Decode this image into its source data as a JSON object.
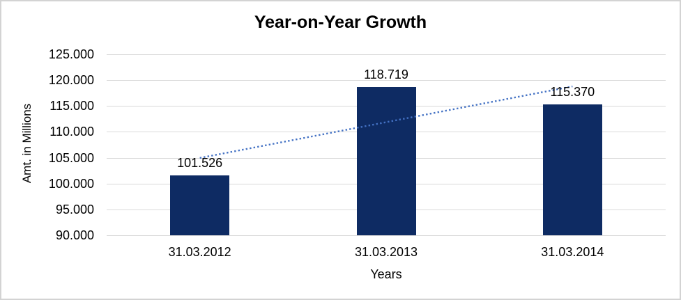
{
  "chart_data": {
    "type": "bar",
    "title": "Year-on-Year Growth",
    "xlabel": "Years",
    "ylabel": "Amt. in Millions",
    "categories": [
      "31.03.2012",
      "31.03.2013",
      "31.03.2014"
    ],
    "values": [
      101526,
      118719,
      115370
    ],
    "value_labels": [
      "101.526",
      "118.719",
      "115.370"
    ],
    "ylim": [
      90000,
      125000
    ],
    "ytick_step": 5000,
    "ytick_labels": [
      "90.000",
      "95.000",
      "100.000",
      "105.000",
      "110.000",
      "115.000",
      "120.000",
      "125.000"
    ],
    "grid": true,
    "legend": "none",
    "bar_color": "#0e2b63",
    "gridline_color": "#d9d9d9",
    "text_color": "#000000",
    "trendline": {
      "type": "linear",
      "style": "dotted",
      "color": "#4472c4",
      "endpoints_values": [
        104953,
        118792
      ]
    }
  }
}
